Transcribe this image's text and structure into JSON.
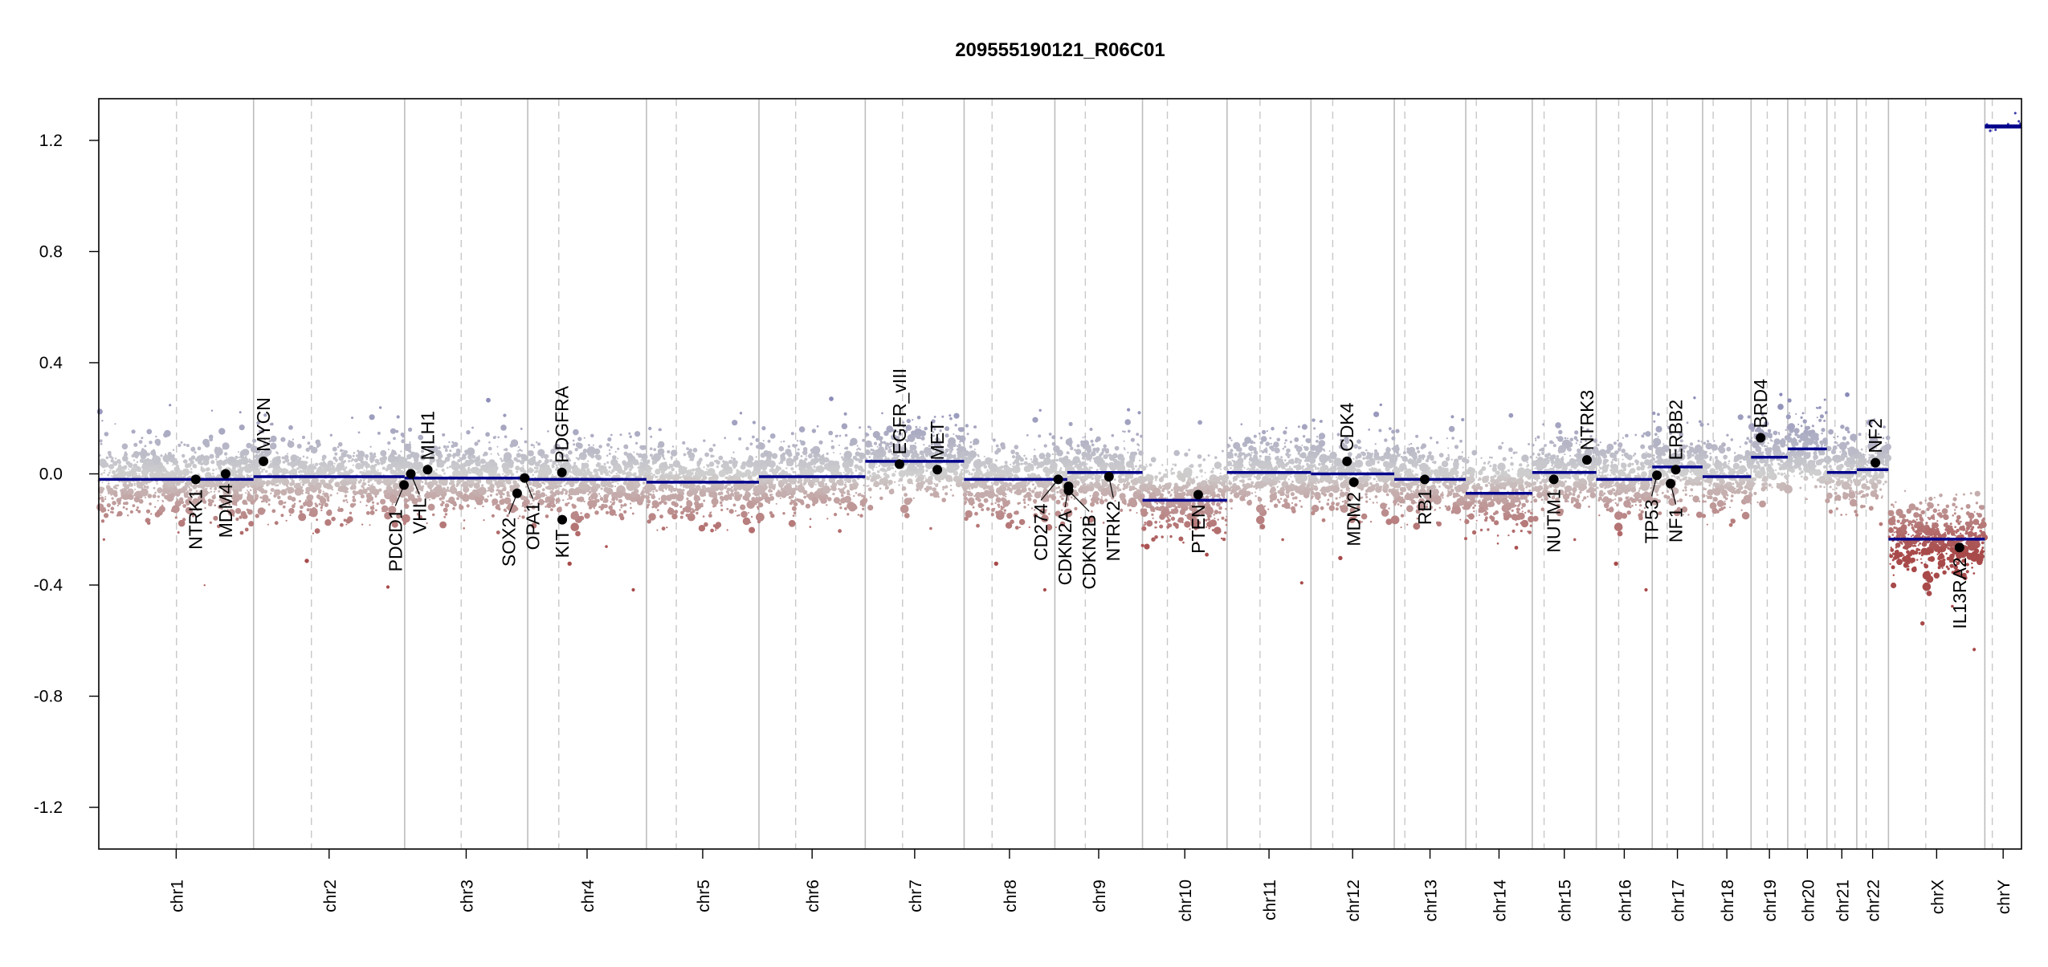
{
  "chart_data": {
    "type": "scatter",
    "title": "209555190121_R06C01",
    "xlabel": "",
    "ylabel": "",
    "ylim": [
      -1.35,
      1.35
    ],
    "yticks": [
      -1.2,
      -0.8,
      -0.4,
      0.0,
      0.4,
      0.8,
      1.2
    ],
    "grid": "vertical lines at chromosome boundaries (solid) and centromeres (dashed)",
    "colors": {
      "gain": "#8a8ab8",
      "neutral": "#cfcfcf",
      "loss": "#a84a4a",
      "segment": "#00008b",
      "gene": "#000000",
      "boundary": "#bdbdbd"
    },
    "chromosomes": [
      {
        "name": "chr1",
        "length": 249,
        "centromere": 125
      },
      {
        "name": "chr2",
        "length": 243,
        "centromere": 93
      },
      {
        "name": "chr3",
        "length": 198,
        "centromere": 91
      },
      {
        "name": "chr4",
        "length": 191,
        "centromere": 50
      },
      {
        "name": "chr5",
        "length": 181,
        "centromere": 48
      },
      {
        "name": "chr6",
        "length": 171,
        "centromere": 59
      },
      {
        "name": "chr7",
        "length": 159,
        "centromere": 60
      },
      {
        "name": "chr8",
        "length": 146,
        "centromere": 45
      },
      {
        "name": "chr9",
        "length": 141,
        "centromere": 49
      },
      {
        "name": "chr10",
        "length": 136,
        "centromere": 40
      },
      {
        "name": "chr11",
        "length": 135,
        "centromere": 53
      },
      {
        "name": "chr12",
        "length": 134,
        "centromere": 35
      },
      {
        "name": "chr13",
        "length": 115,
        "centromere": 17
      },
      {
        "name": "chr14",
        "length": 107,
        "centromere": 17
      },
      {
        "name": "chr15",
        "length": 103,
        "centromere": 19
      },
      {
        "name": "chr16",
        "length": 90,
        "centromere": 36
      },
      {
        "name": "chr17",
        "length": 81,
        "centromere": 24
      },
      {
        "name": "chr18",
        "length": 78,
        "centromere": 17
      },
      {
        "name": "chr19",
        "length": 59,
        "centromere": 26
      },
      {
        "name": "chr20",
        "length": 63,
        "centromere": 28
      },
      {
        "name": "chr21",
        "length": 48,
        "centromere": 13
      },
      {
        "name": "chr22",
        "length": 51,
        "centromere": 15
      },
      {
        "name": "chrX",
        "length": 155,
        "centromere": 60
      },
      {
        "name": "chrY",
        "length": 59,
        "centromere": 12
      }
    ],
    "segments": [
      {
        "chrom": "chr1",
        "start": 0,
        "end": 249,
        "value": -0.02
      },
      {
        "chrom": "chr2",
        "start": 0,
        "end": 243,
        "value": -0.01
      },
      {
        "chrom": "chr3",
        "start": 0,
        "end": 198,
        "value": -0.015
      },
      {
        "chrom": "chr4",
        "start": 0,
        "end": 191,
        "value": -0.02
      },
      {
        "chrom": "chr5",
        "start": 0,
        "end": 181,
        "value": -0.03
      },
      {
        "chrom": "chr6",
        "start": 0,
        "end": 171,
        "value": -0.01
      },
      {
        "chrom": "chr7",
        "start": 0,
        "end": 159,
        "value": 0.045
      },
      {
        "chrom": "chr8",
        "start": 0,
        "end": 146,
        "value": -0.02
      },
      {
        "chrom": "chr9",
        "start": 0,
        "end": 20,
        "value": -0.02
      },
      {
        "chrom": "chr9",
        "start": 20,
        "end": 141,
        "value": 0.005
      },
      {
        "chrom": "chr10",
        "start": 0,
        "end": 136,
        "value": -0.095
      },
      {
        "chrom": "chr11",
        "start": 0,
        "end": 135,
        "value": 0.005
      },
      {
        "chrom": "chr12",
        "start": 0,
        "end": 134,
        "value": 0.0
      },
      {
        "chrom": "chr13",
        "start": 0,
        "end": 115,
        "value": -0.02
      },
      {
        "chrom": "chr14",
        "start": 0,
        "end": 107,
        "value": -0.07
      },
      {
        "chrom": "chr15",
        "start": 0,
        "end": 103,
        "value": 0.005
      },
      {
        "chrom": "chr16",
        "start": 0,
        "end": 90,
        "value": -0.02
      },
      {
        "chrom": "chr17",
        "start": 0,
        "end": 81,
        "value": 0.025
      },
      {
        "chrom": "chr18",
        "start": 0,
        "end": 78,
        "value": -0.01
      },
      {
        "chrom": "chr19",
        "start": 0,
        "end": 59,
        "value": 0.06
      },
      {
        "chrom": "chr20",
        "start": 0,
        "end": 63,
        "value": 0.09
      },
      {
        "chrom": "chr21",
        "start": 0,
        "end": 48,
        "value": 0.005
      },
      {
        "chrom": "chr22",
        "start": 0,
        "end": 51,
        "value": 0.015
      },
      {
        "chrom": "chrX",
        "start": 0,
        "end": 155,
        "value": -0.235
      },
      {
        "chrom": "chrY",
        "start": 0,
        "end": 59,
        "value": 1.25
      }
    ],
    "genes": [
      {
        "name": "NTRK1",
        "chrom": "chr1",
        "pos": 156,
        "value": -0.02,
        "label": "below"
      },
      {
        "name": "MDM4",
        "chrom": "chr1",
        "pos": 204,
        "value": 0.0,
        "label": "below"
      },
      {
        "name": "MYCN",
        "chrom": "chr2",
        "pos": 16,
        "value": 0.045,
        "label": "above"
      },
      {
        "name": "PDCD1",
        "chrom": "chr2",
        "pos": 242,
        "value": -0.04,
        "label": "below"
      },
      {
        "name": "VHL",
        "chrom": "chr3",
        "pos": 10,
        "value": 0.0,
        "label": "below"
      },
      {
        "name": "MLH1",
        "chrom": "chr3",
        "pos": 37,
        "value": 0.015,
        "label": "above"
      },
      {
        "name": "SOX2",
        "chrom": "chr3",
        "pos": 181,
        "value": -0.07,
        "label": "below"
      },
      {
        "name": "OPA1",
        "chrom": "chr3",
        "pos": 193,
        "value": -0.015,
        "label": "below"
      },
      {
        "name": "PDGFRA",
        "chrom": "chr4",
        "pos": 55,
        "value": 0.005,
        "label": "above"
      },
      {
        "name": "KIT",
        "chrom": "chr4",
        "pos": 55.5,
        "value": -0.165,
        "label": "below"
      },
      {
        "name": "EGFR_vIII",
        "chrom": "chr7",
        "pos": 55,
        "value": 0.035,
        "label": "above"
      },
      {
        "name": "MET",
        "chrom": "chr7",
        "pos": 116,
        "value": 0.015,
        "label": "above"
      },
      {
        "name": "CD274",
        "chrom": "chr9",
        "pos": 5.5,
        "value": -0.02,
        "label": "below"
      },
      {
        "name": "CDKN2A",
        "chrom": "chr9",
        "pos": 21.9,
        "value": -0.045,
        "label": "below"
      },
      {
        "name": "CDKN2B",
        "chrom": "chr9",
        "pos": 22.0,
        "value": -0.06,
        "label": "below"
      },
      {
        "name": "NTRK2",
        "chrom": "chr9",
        "pos": 87,
        "value": -0.01,
        "label": "below"
      },
      {
        "name": "PTEN",
        "chrom": "chr10",
        "pos": 89.6,
        "value": -0.075,
        "label": "below"
      },
      {
        "name": "CDK4",
        "chrom": "chr12",
        "pos": 58,
        "value": 0.045,
        "label": "above"
      },
      {
        "name": "MDM2",
        "chrom": "chr12",
        "pos": 69,
        "value": -0.03,
        "label": "below"
      },
      {
        "name": "RB1",
        "chrom": "chr13",
        "pos": 49,
        "value": -0.02,
        "label": "below"
      },
      {
        "name": "NUTM1",
        "chrom": "chr15",
        "pos": 34.6,
        "value": -0.02,
        "label": "below"
      },
      {
        "name": "NTRK3",
        "chrom": "chr15",
        "pos": 88,
        "value": 0.05,
        "label": "above"
      },
      {
        "name": "TP53",
        "chrom": "chr17",
        "pos": 7.5,
        "value": -0.005,
        "label": "below"
      },
      {
        "name": "NF1",
        "chrom": "chr17",
        "pos": 29.5,
        "value": -0.035,
        "label": "below"
      },
      {
        "name": "ERBB2",
        "chrom": "chr17",
        "pos": 37.8,
        "value": 0.015,
        "label": "above"
      },
      {
        "name": "BRD4",
        "chrom": "chr19",
        "pos": 15.3,
        "value": 0.13,
        "label": "above"
      },
      {
        "name": "NF2",
        "chrom": "chr22",
        "pos": 30,
        "value": 0.04,
        "label": "above"
      },
      {
        "name": "IL13RA2",
        "chrom": "chrX",
        "pos": 114.2,
        "value": -0.265,
        "label": "below"
      }
    ]
  }
}
